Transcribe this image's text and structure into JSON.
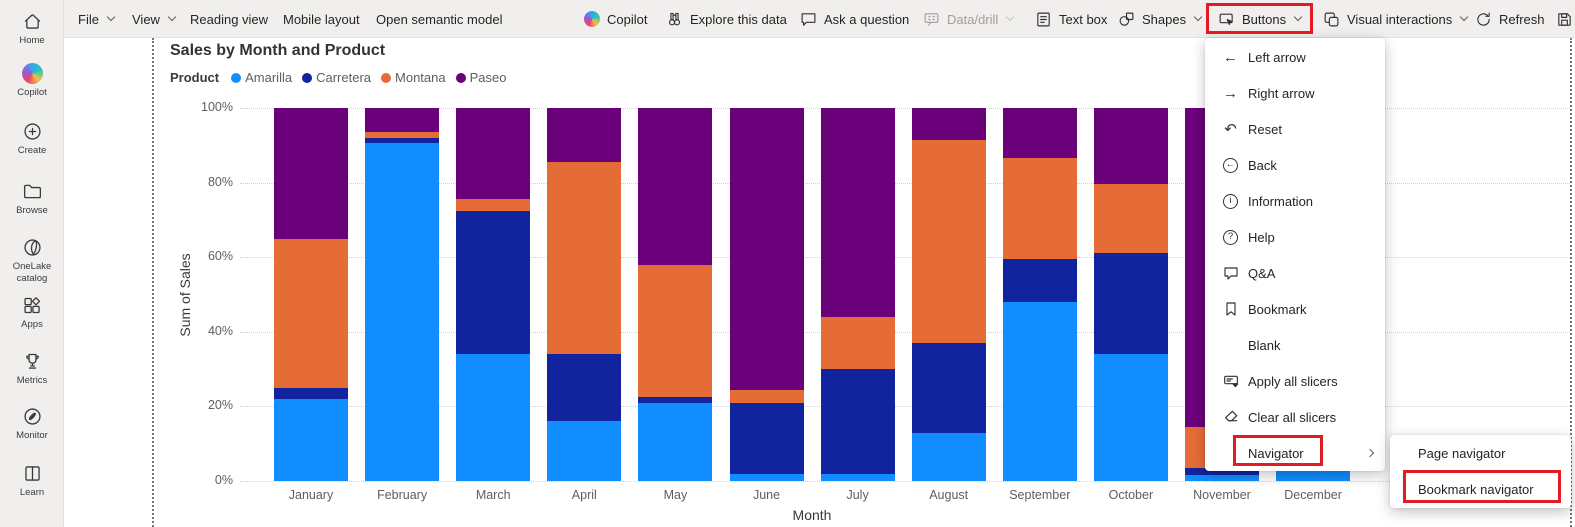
{
  "sidebar": {
    "items": [
      {
        "id": "home",
        "label": "Home",
        "icon": "home-icon"
      },
      {
        "id": "copilot",
        "label": "Copilot",
        "icon": "copilot-color-icon"
      },
      {
        "id": "create",
        "label": "Create",
        "icon": "create-icon"
      },
      {
        "id": "browse",
        "label": "Browse",
        "icon": "browse-icon"
      },
      {
        "id": "onelake-catalog",
        "label": "OneLake catalog",
        "icon": "onelake-icon"
      },
      {
        "id": "apps",
        "label": "Apps",
        "icon": "apps-icon"
      },
      {
        "id": "metrics",
        "label": "Metrics",
        "icon": "metrics-icon"
      },
      {
        "id": "monitor",
        "label": "Monitor",
        "icon": "monitor-icon"
      },
      {
        "id": "learn",
        "label": "Learn",
        "icon": "learn-icon"
      }
    ]
  },
  "toolbar": {
    "items": [
      {
        "id": "file",
        "label": "File",
        "chevron": true
      },
      {
        "id": "view",
        "label": "View",
        "chevron": true
      },
      {
        "id": "reading-view",
        "label": "Reading view"
      },
      {
        "id": "mobile-layout",
        "label": "Mobile layout"
      },
      {
        "id": "open-semantic-model",
        "label": "Open semantic model"
      },
      {
        "id": "copilot",
        "label": "Copilot",
        "icon": "copilot-color-icon"
      },
      {
        "id": "explore-this-data",
        "label": "Explore this data",
        "icon": "binoculars-icon"
      },
      {
        "id": "ask-a-question",
        "label": "Ask a question",
        "icon": "chat-bubble-icon"
      },
      {
        "id": "data-drill",
        "label": "Data/drill",
        "icon": "data-drill-icon",
        "chevron": true,
        "disabled": true
      },
      {
        "id": "text-box",
        "label": "Text box",
        "icon": "text-box-icon"
      },
      {
        "id": "shapes",
        "label": "Shapes",
        "icon": "shapes-icon",
        "chevron": true
      },
      {
        "id": "buttons",
        "label": "Buttons",
        "icon": "buttons-icon",
        "chevron": true,
        "highlighted": true
      },
      {
        "id": "visual-interactions",
        "label": "Visual interactions",
        "icon": "visual-interactions-icon",
        "chevron": true
      },
      {
        "id": "refresh",
        "label": "Refresh",
        "icon": "refresh-icon"
      },
      {
        "id": "save",
        "label": "",
        "icon": "save-icon"
      }
    ]
  },
  "buttons_menu": {
    "items": [
      {
        "label": "Left arrow",
        "icon": "left-arrow-icon"
      },
      {
        "label": "Right arrow",
        "icon": "right-arrow-icon"
      },
      {
        "label": "Reset",
        "icon": "reset-icon"
      },
      {
        "label": "Back",
        "icon": "back-icon"
      },
      {
        "label": "Information",
        "icon": "information-icon"
      },
      {
        "label": "Help",
        "icon": "help-icon"
      },
      {
        "label": "Q&A",
        "icon": "qa-bubble-icon"
      },
      {
        "label": "Bookmark",
        "icon": "bookmark-icon"
      },
      {
        "label": "Blank"
      },
      {
        "label": "Apply all slicers",
        "icon": "apply-slicers-icon"
      },
      {
        "label": "Clear all slicers",
        "icon": "clear-slicers-icon"
      },
      {
        "label": "Navigator",
        "highlighted": true,
        "has_submenu": true
      }
    ]
  },
  "navigator_submenu": {
    "items": [
      {
        "label": "Page navigator"
      },
      {
        "label": "Bookmark navigator",
        "highlighted": true
      }
    ]
  },
  "highlight_color": "#e11d23",
  "chart_data": {
    "type": "bar",
    "stacked": true,
    "percent_stacked": true,
    "title": "Sales by Month and Product",
    "legend_title": "Product",
    "legend_position": "top",
    "xlabel": "Month",
    "ylabel": "Sum of Sales",
    "ylim": [
      0,
      100
    ],
    "yticks": [
      "0%",
      "20%",
      "40%",
      "60%",
      "80%",
      "100%"
    ],
    "grid": "dotted-horizontal",
    "categories": [
      "January",
      "February",
      "March",
      "April",
      "May",
      "June",
      "July",
      "August",
      "September",
      "October",
      "November",
      "December"
    ],
    "series": [
      {
        "name": "Amarilla",
        "color": "#118DFF",
        "values": [
          22,
          90.5,
          34,
          16,
          21,
          2,
          2,
          13,
          48,
          34,
          1.5,
          3
        ]
      },
      {
        "name": "Carretera",
        "color": "#12239E",
        "values": [
          3,
          1.5,
          38.5,
          18,
          1.5,
          19,
          28,
          24,
          11.5,
          27,
          2,
          2
        ]
      },
      {
        "name": "Montana",
        "color": "#E66C37",
        "values": [
          40,
          1.5,
          3,
          51.5,
          35.5,
          3.5,
          14,
          54.5,
          27,
          18.5,
          11,
          10
        ]
      },
      {
        "name": "Paseo",
        "color": "#6B007B",
        "values": [
          35,
          6.5,
          24.5,
          14.5,
          42,
          75.5,
          56,
          8.5,
          13.5,
          20.5,
          85.5,
          85
        ]
      }
    ]
  }
}
